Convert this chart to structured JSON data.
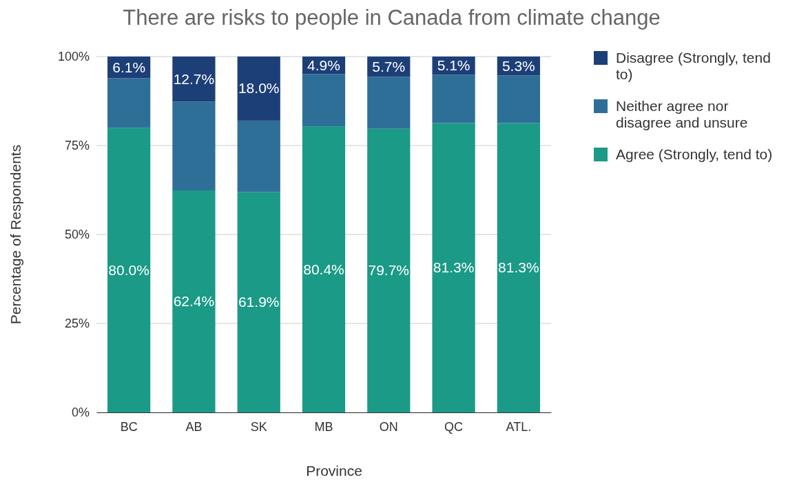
{
  "chart_data": {
    "type": "bar",
    "stacked": true,
    "title": "There are risks to people in Canada from climate change",
    "xlabel": "Province",
    "ylabel": "Percentage of Respondents",
    "categories": [
      "BC",
      "AB",
      "SK",
      "MB",
      "ON",
      "QC",
      "ATL."
    ],
    "series": [
      {
        "name": "Agree (Strongly, tend to)",
        "color": "#1a9a87",
        "values": [
          80.0,
          62.4,
          61.9,
          80.4,
          79.7,
          81.3,
          81.3
        ],
        "value_labels": [
          "80.0%",
          "62.4%",
          "61.9%",
          "80.4%",
          "79.7%",
          "81.3%",
          "81.3%"
        ]
      },
      {
        "name": "Neither agree nor disagree and unsure",
        "color": "#2e6f98",
        "values": [
          13.9,
          24.9,
          20.1,
          14.7,
          14.6,
          13.6,
          13.4
        ]
      },
      {
        "name": "Disagree (Strongly, tend to)",
        "color": "#1d3f78",
        "values": [
          6.1,
          12.7,
          18.0,
          4.9,
          5.7,
          5.1,
          5.3
        ],
        "value_labels": [
          "6.1%",
          "12.7%",
          "18.0%",
          "4.9%",
          "5.7%",
          "5.1%",
          "5.3%"
        ]
      }
    ],
    "ylim": [
      0,
      100
    ],
    "yticks": [
      {
        "value": 0,
        "label": "0%"
      },
      {
        "value": 25,
        "label": "25%"
      },
      {
        "value": 50,
        "label": "50%"
      },
      {
        "value": 75,
        "label": "75%"
      },
      {
        "value": 100,
        "label": "100%"
      }
    ],
    "grid": "y",
    "legend": "right"
  }
}
